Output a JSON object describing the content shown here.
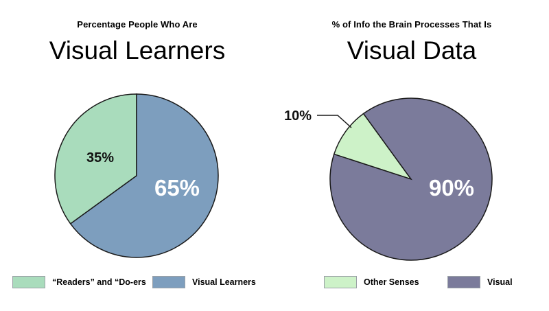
{
  "colors": {
    "readers": "#a9dcbc",
    "visual_learners": "#7d9ebe",
    "other_senses": "#cdf2c8",
    "visual": "#7b7b9b",
    "outline": "#1a1a1a"
  },
  "chart_data": [
    {
      "type": "pie",
      "title": "Visual Learners",
      "subtitle": "Percentage People Who Are",
      "slices": [
        {
          "label": "“Readers” and “Do-ers",
          "value": 35,
          "display": "35%"
        },
        {
          "label": "Visual Learners",
          "value": 65,
          "display": "65%"
        }
      ],
      "legend": "bottom"
    },
    {
      "type": "pie",
      "title": "Visual Data",
      "subtitle": "% of Info the Brain Processes That Is",
      "slices": [
        {
          "label": "Other Senses",
          "value": 10,
          "display": "10%"
        },
        {
          "label": "Visual",
          "value": 90,
          "display": "90%"
        }
      ],
      "legend": "bottom"
    }
  ]
}
